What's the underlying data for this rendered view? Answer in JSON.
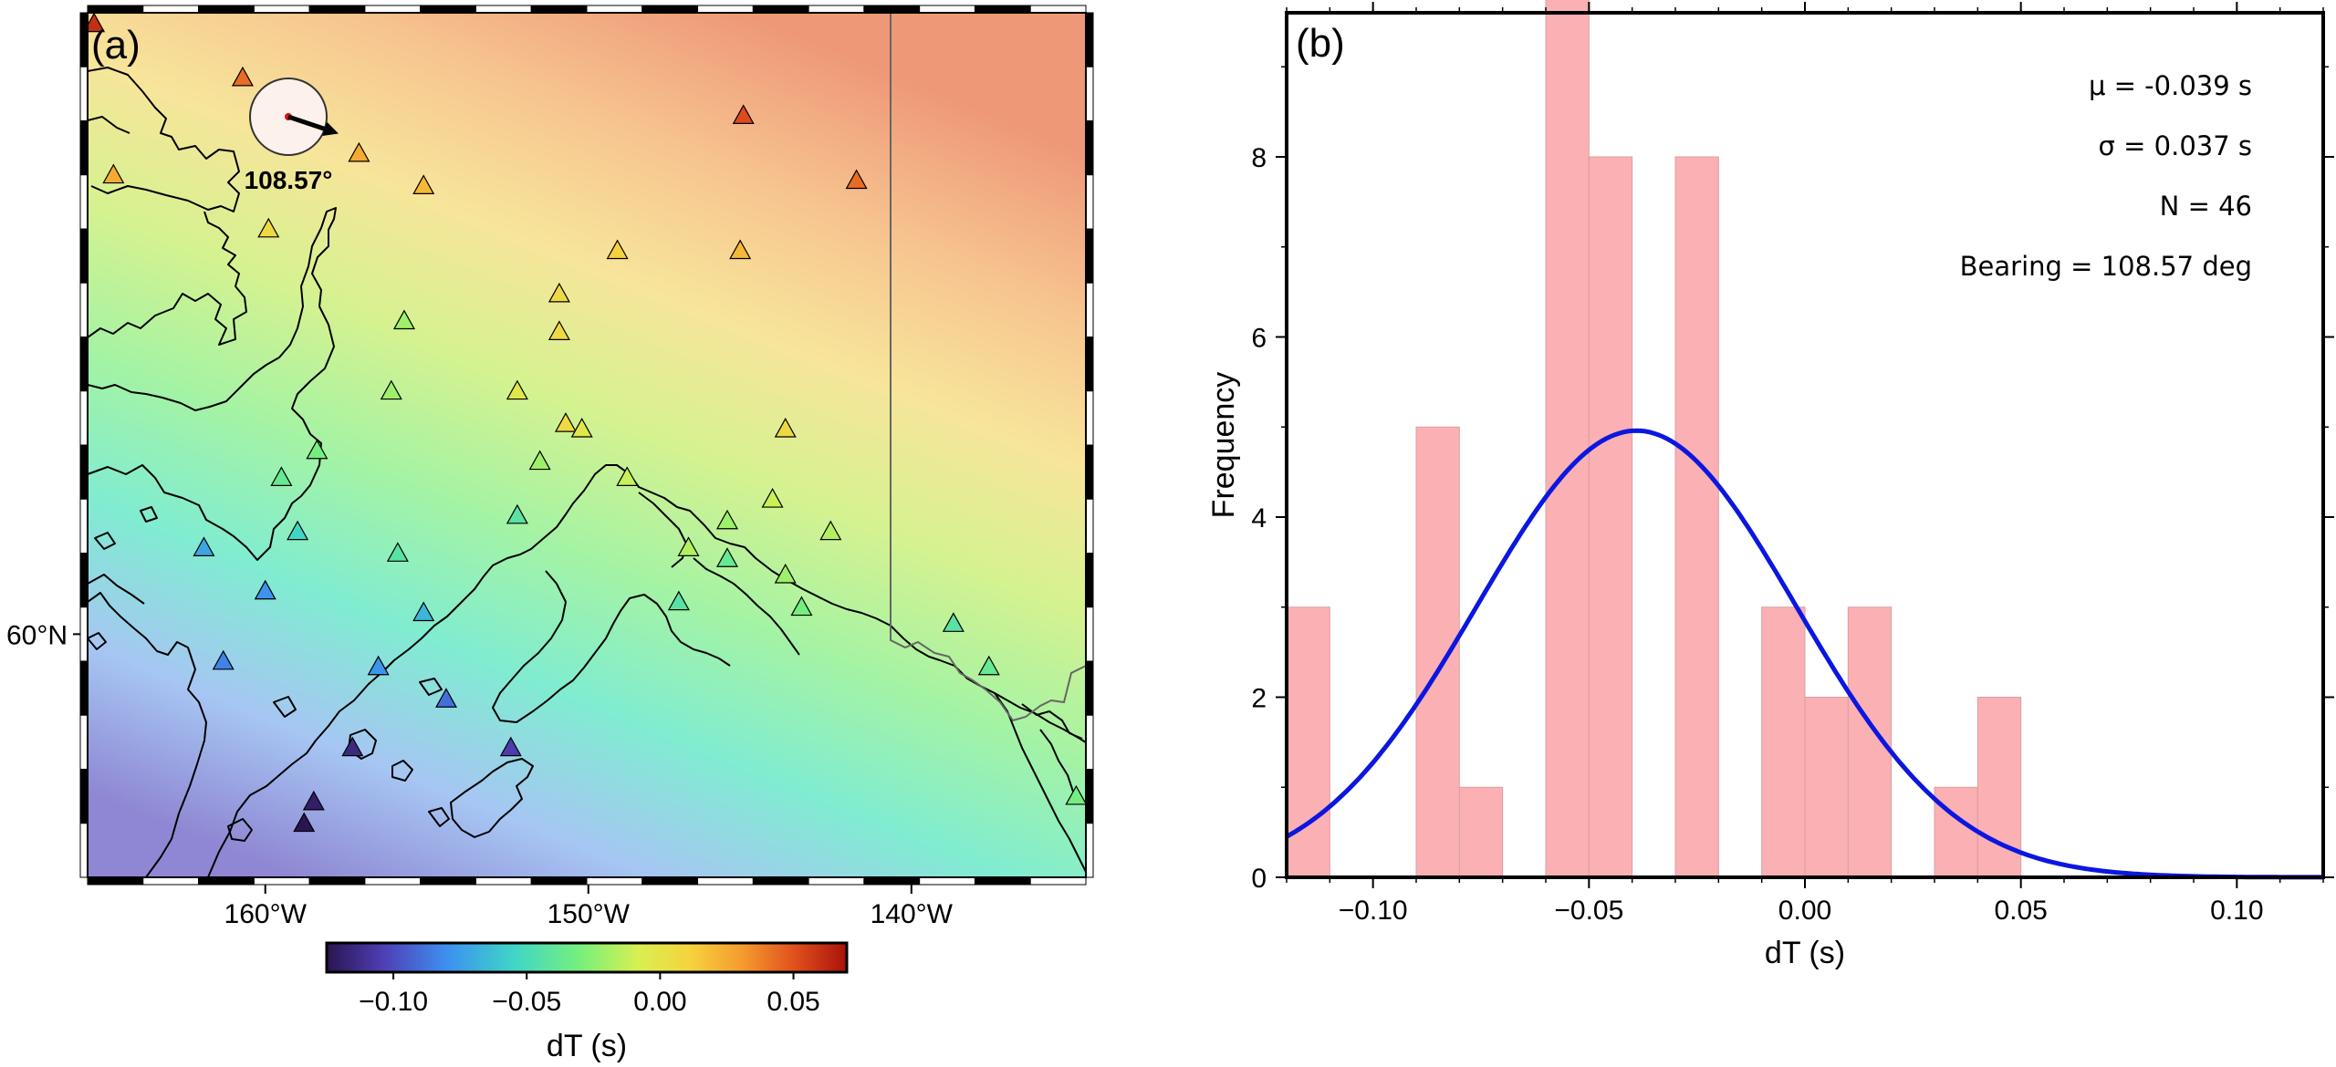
{
  "chart_data": [
    {
      "panel": "a",
      "type": "scatter",
      "panel_label": "(a)",
      "xlim": [
        -165.5,
        -134.6
      ],
      "ylim": [
        55.5,
        71.5
      ],
      "x_ticks": [
        {
          "value": -160,
          "label": "160°W"
        },
        {
          "value": -150,
          "label": "150°W"
        },
        {
          "value": -140,
          "label": "140°W"
        }
      ],
      "y_ticks": [
        {
          "value": 60,
          "label": "60°N"
        }
      ],
      "background_field": "dT gradient (high in north-east, low in south-west)",
      "colorbar": {
        "label": "dT (s)",
        "range": [
          -0.125,
          0.07
        ],
        "ticks": [
          {
            "value": -0.1,
            "label": "−0.10"
          },
          {
            "value": -0.05,
            "label": "−0.05"
          },
          {
            "value": 0.0,
            "label": "0.00"
          },
          {
            "value": 0.05,
            "label": "0.05"
          }
        ],
        "colors": [
          "#2a1550",
          "#4f3fb5",
          "#3d8ff0",
          "#3fd6c7",
          "#79f07a",
          "#d8f050",
          "#f6d23e",
          "#f59a2e",
          "#e0501c",
          "#a8120a"
        ]
      },
      "bearing_indicator": {
        "value_label": "108.57°",
        "bearing_deg": 108.57
      },
      "stations": [
        {
          "lon": -165.3,
          "lat": 71.3,
          "dT": 0.06
        },
        {
          "lon": -160.7,
          "lat": 70.3,
          "dT": 0.04
        },
        {
          "lon": -164.7,
          "lat": 68.5,
          "dT": 0.02
        },
        {
          "lon": -157.1,
          "lat": 68.9,
          "dT": 0.02
        },
        {
          "lon": -155.1,
          "lat": 68.3,
          "dT": 0.015
        },
        {
          "lon": -145.2,
          "lat": 69.6,
          "dT": 0.05
        },
        {
          "lon": -141.7,
          "lat": 68.4,
          "dT": 0.04
        },
        {
          "lon": -159.9,
          "lat": 67.5,
          "dT": 0.0
        },
        {
          "lon": -149.1,
          "lat": 67.1,
          "dT": 0.005
        },
        {
          "lon": -145.3,
          "lat": 67.1,
          "dT": 0.015
        },
        {
          "lon": -150.9,
          "lat": 66.3,
          "dT": 0.0
        },
        {
          "lon": -155.7,
          "lat": 65.8,
          "dT": -0.03
        },
        {
          "lon": -150.9,
          "lat": 65.6,
          "dT": 0.0
        },
        {
          "lon": -156.1,
          "lat": 64.5,
          "dT": -0.03
        },
        {
          "lon": -152.2,
          "lat": 64.5,
          "dT": -0.01
        },
        {
          "lon": -150.7,
          "lat": 63.9,
          "dT": 0.0
        },
        {
          "lon": -150.2,
          "lat": 63.8,
          "dT": -0.01
        },
        {
          "lon": -143.9,
          "lat": 63.8,
          "dT": 0.0
        },
        {
          "lon": -158.4,
          "lat": 63.4,
          "dT": -0.04
        },
        {
          "lon": -151.5,
          "lat": 63.2,
          "dT": -0.03
        },
        {
          "lon": -159.5,
          "lat": 62.9,
          "dT": -0.045
        },
        {
          "lon": -148.8,
          "lat": 62.9,
          "dT": -0.02
        },
        {
          "lon": -144.3,
          "lat": 62.5,
          "dT": -0.02
        },
        {
          "lon": -152.2,
          "lat": 62.2,
          "dT": -0.05
        },
        {
          "lon": -145.7,
          "lat": 62.1,
          "dT": -0.03
        },
        {
          "lon": -159.0,
          "lat": 61.9,
          "dT": -0.06
        },
        {
          "lon": -142.5,
          "lat": 61.9,
          "dT": -0.025
        },
        {
          "lon": -146.9,
          "lat": 61.6,
          "dT": -0.025
        },
        {
          "lon": -161.9,
          "lat": 61.6,
          "dT": -0.075
        },
        {
          "lon": -155.9,
          "lat": 61.5,
          "dT": -0.05
        },
        {
          "lon": -145.7,
          "lat": 61.4,
          "dT": -0.045
        },
        {
          "lon": -143.9,
          "lat": 61.1,
          "dT": -0.03
        },
        {
          "lon": -160.0,
          "lat": 60.8,
          "dT": -0.08
        },
        {
          "lon": -147.2,
          "lat": 60.6,
          "dT": -0.05
        },
        {
          "lon": -143.4,
          "lat": 60.5,
          "dT": -0.04
        },
        {
          "lon": -155.1,
          "lat": 60.4,
          "dT": -0.07
        },
        {
          "lon": -138.7,
          "lat": 60.2,
          "dT": -0.05
        },
        {
          "lon": -161.3,
          "lat": 59.5,
          "dT": -0.085
        },
        {
          "lon": -156.5,
          "lat": 59.4,
          "dT": -0.08
        },
        {
          "lon": -137.6,
          "lat": 59.4,
          "dT": -0.045
        },
        {
          "lon": -154.4,
          "lat": 58.8,
          "dT": -0.09
        },
        {
          "lon": -157.3,
          "lat": 57.9,
          "dT": -0.115
        },
        {
          "lon": -152.4,
          "lat": 57.9,
          "dT": -0.105
        },
        {
          "lon": -158.5,
          "lat": 56.9,
          "dT": -0.12
        },
        {
          "lon": -158.8,
          "lat": 56.5,
          "dT": -0.125
        },
        {
          "lon": -134.9,
          "lat": 57.0,
          "dT": -0.04
        }
      ]
    },
    {
      "panel": "b",
      "type": "bar",
      "panel_label": "(b)",
      "xlabel": "dT (s)",
      "ylabel": "Frequency",
      "xlim": [
        -0.12,
        0.12
      ],
      "ylim": [
        0,
        9.6
      ],
      "bin_width": 0.01,
      "x_ticks": [
        {
          "value": -0.1,
          "label": "−0.10"
        },
        {
          "value": -0.05,
          "label": "−0.05"
        },
        {
          "value": 0.0,
          "label": "0.00"
        },
        {
          "value": 0.05,
          "label": "0.05"
        },
        {
          "value": 0.1,
          "label": "0.10"
        }
      ],
      "y_ticks": [
        {
          "value": 0,
          "label": "0"
        },
        {
          "value": 2,
          "label": "2"
        },
        {
          "value": 4,
          "label": "4"
        },
        {
          "value": 6,
          "label": "6"
        },
        {
          "value": 8,
          "label": "8"
        }
      ],
      "bins": [
        {
          "left": -0.12,
          "right": -0.11,
          "count": 3
        },
        {
          "left": -0.09,
          "right": -0.08,
          "count": 5
        },
        {
          "left": -0.08,
          "right": -0.07,
          "count": 1
        },
        {
          "left": -0.06,
          "right": -0.05,
          "count": 10
        },
        {
          "left": -0.05,
          "right": -0.04,
          "count": 8
        },
        {
          "left": -0.03,
          "right": -0.02,
          "count": 8
        },
        {
          "left": -0.01,
          "right": 0.0,
          "count": 3
        },
        {
          "left": 0.0,
          "right": 0.01,
          "count": 2
        },
        {
          "left": 0.01,
          "right": 0.02,
          "count": 3
        },
        {
          "left": 0.03,
          "right": 0.04,
          "count": 1
        },
        {
          "left": 0.04,
          "right": 0.05,
          "count": 2
        }
      ],
      "fit_curve": {
        "mean": -0.039,
        "std": 0.037,
        "n": 46,
        "color": "#0b17e0"
      },
      "bar_color": "#fbb0b3",
      "annotations": [
        {
          "text": "μ = -0.039 s"
        },
        {
          "text": "σ = 0.037 s"
        },
        {
          "text": "N = 46"
        },
        {
          "text": "Bearing = 108.57 deg"
        }
      ]
    }
  ]
}
